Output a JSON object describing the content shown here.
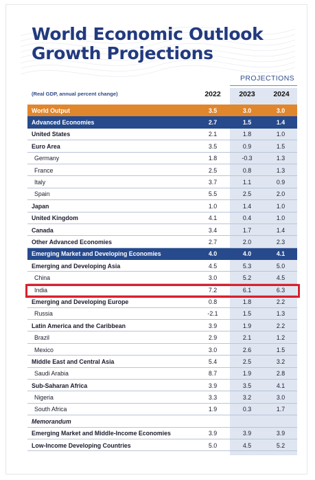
{
  "title": "World Economic Outlook Growth Projections",
  "projections_label": "PROJECTIONS",
  "gdp_note": "(Real GDP, annual percent change)",
  "columns": [
    "2022",
    "2023",
    "2024"
  ],
  "rows": [
    {
      "label": "World Output",
      "v": [
        "3.5",
        "3.0",
        "3.0"
      ],
      "style": "world"
    },
    {
      "label": "Advanced Economies",
      "v": [
        "2.7",
        "1.5",
        "1.4"
      ],
      "style": "blue"
    },
    {
      "label": "United States",
      "v": [
        "2.1",
        "1.8",
        "1.0"
      ],
      "style": "bold"
    },
    {
      "label": "Euro Area",
      "v": [
        "3.5",
        "0.9",
        "1.5"
      ],
      "style": "bold"
    },
    {
      "label": "Germany",
      "v": [
        "1.8",
        "-0.3",
        "1.3"
      ],
      "style": "indent"
    },
    {
      "label": "France",
      "v": [
        "2.5",
        "0.8",
        "1.3"
      ],
      "style": "indent"
    },
    {
      "label": "Italy",
      "v": [
        "3.7",
        "1.1",
        "0.9"
      ],
      "style": "indent"
    },
    {
      "label": "Spain",
      "v": [
        "5.5",
        "2.5",
        "2.0"
      ],
      "style": "indent"
    },
    {
      "label": "Japan",
      "v": [
        "1.0",
        "1.4",
        "1.0"
      ],
      "style": "bold"
    },
    {
      "label": "United Kingdom",
      "v": [
        "4.1",
        "0.4",
        "1.0"
      ],
      "style": "bold"
    },
    {
      "label": "Canada",
      "v": [
        "3.4",
        "1.7",
        "1.4"
      ],
      "style": "bold"
    },
    {
      "label": "Other Advanced Economies",
      "v": [
        "2.7",
        "2.0",
        "2.3"
      ],
      "style": "bold"
    },
    {
      "label": "Emerging Market and Developing Economies",
      "v": [
        "4.0",
        "4.0",
        "4.1"
      ],
      "style": "blue"
    },
    {
      "label": "Emerging and Developing Asia",
      "v": [
        "4.5",
        "5.3",
        "5.0"
      ],
      "style": "bold"
    },
    {
      "label": "China",
      "v": [
        "3.0",
        "5.2",
        "4.5"
      ],
      "style": "indent"
    },
    {
      "label": "India",
      "v": [
        "7.2",
        "6.1",
        "6.3"
      ],
      "style": "indent"
    },
    {
      "label": "Emerging and Developing Europe",
      "v": [
        "0.8",
        "1.8",
        "2.2"
      ],
      "style": "bold"
    },
    {
      "label": "Russia",
      "v": [
        "-2.1",
        "1.5",
        "1.3"
      ],
      "style": "indent"
    },
    {
      "label": "Latin America and the Caribbean",
      "v": [
        "3.9",
        "1.9",
        "2.2"
      ],
      "style": "bold"
    },
    {
      "label": "Brazil",
      "v": [
        "2.9",
        "2.1",
        "1.2"
      ],
      "style": "indent"
    },
    {
      "label": "Mexico",
      "v": [
        "3.0",
        "2.6",
        "1.5"
      ],
      "style": "indent"
    },
    {
      "label": "Middle East and Central Asia",
      "v": [
        "5.4",
        "2.5",
        "3.2"
      ],
      "style": "bold"
    },
    {
      "label": "Saudi Arabia",
      "v": [
        "8.7",
        "1.9",
        "2.8"
      ],
      "style": "indent"
    },
    {
      "label": "Sub-Saharan Africa",
      "v": [
        "3.9",
        "3.5",
        "4.1"
      ],
      "style": "bold"
    },
    {
      "label": "Nigeria",
      "v": [
        "3.3",
        "3.2",
        "3.0"
      ],
      "style": "indent"
    },
    {
      "label": "South Africa",
      "v": [
        "1.9",
        "0.3",
        "1.7"
      ],
      "style": "indent"
    },
    {
      "label": "Memorandum",
      "v": [
        "",
        "",
        ""
      ],
      "style": "memo"
    },
    {
      "label": "Emerging Market and Middle-Income Economies",
      "v": [
        "3.9",
        "3.9",
        "3.9"
      ],
      "style": "bold"
    },
    {
      "label": "Low-Income Developing Countries",
      "v": [
        "5.0",
        "4.5",
        "5.2"
      ],
      "style": "bold"
    }
  ],
  "highlighted_row": "India",
  "colors": {
    "title": "#223a7e",
    "world_row": "#e0862d",
    "group_row": "#264a8c",
    "highlight": "#d9202d",
    "projection_shade": "#dfe6f1"
  }
}
